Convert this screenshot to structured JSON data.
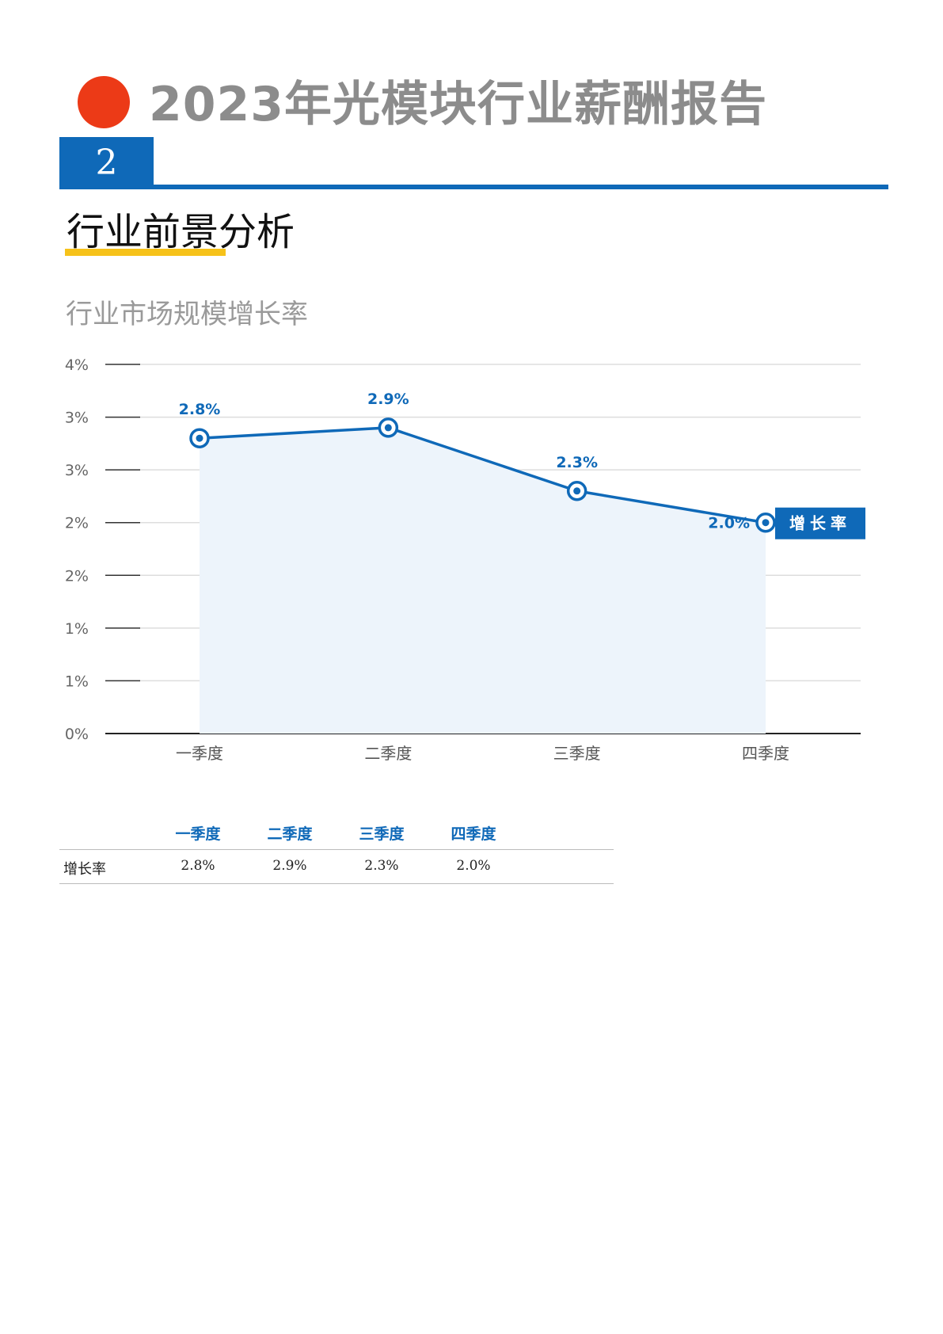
{
  "header": {
    "report_title": "2023年光模块行业薪酬报告",
    "section_number": "2",
    "section_heading": "行业前景分析",
    "accent_color": "#0f69b8",
    "dot_color": "#ec3a17",
    "underline_color": "#f6c21a"
  },
  "chart_data": {
    "type": "line",
    "title": "行业市场规模增长率",
    "categories": [
      "一季度",
      "二季度",
      "三季度",
      "四季度"
    ],
    "series": [
      {
        "name": "增长率",
        "values": [
          2.8,
          2.9,
          2.3,
          2.0
        ],
        "labels": [
          "2.8%",
          "2.9%",
          "2.3%",
          "2.0%"
        ],
        "color": "#0f69b8"
      }
    ],
    "y_tick_labels": [
      "0%",
      "1%",
      "1%",
      "2%",
      "2%",
      "3%",
      "3%",
      "4%"
    ],
    "ylim": [
      0,
      3.5
    ],
    "grid": true,
    "area_fill": true,
    "legend": "right-end-label"
  },
  "table": {
    "headers": [
      "一季度",
      "二季度",
      "三季度",
      "四季度"
    ],
    "rows": [
      {
        "label": "增长率",
        "values": [
          "2.8%",
          "2.9%",
          "2.3%",
          "2.0%"
        ]
      }
    ]
  }
}
